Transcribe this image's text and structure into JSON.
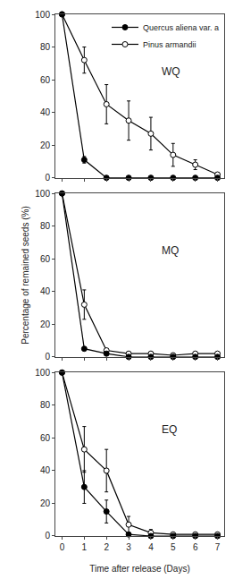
{
  "chart_data": [
    {
      "type": "line",
      "title": "WQ",
      "x": [
        0,
        1,
        2,
        3,
        4,
        5,
        6,
        7
      ],
      "series": [
        {
          "name": "Pinus armandii",
          "color": "black",
          "marker": "open",
          "values": [
            100,
            72,
            45,
            35,
            27,
            14,
            8,
            2
          ],
          "errors": [
            0,
            8,
            12,
            12,
            10,
            7,
            3,
            1
          ]
        },
        {
          "name": "Quercus aliena var. a",
          "color": "black",
          "marker": "filled",
          "values": [
            100,
            11,
            0,
            0,
            0,
            0,
            0,
            0
          ],
          "errors": [
            0,
            2,
            0,
            0,
            0,
            0,
            0,
            0
          ]
        }
      ],
      "xlim": [
        -0.3,
        7.3
      ],
      "xticks": [
        0,
        1,
        2,
        3,
        4,
        5,
        6,
        7
      ],
      "ylim": [
        0,
        100
      ],
      "yticks": [
        0,
        20,
        40,
        60,
        80,
        100
      ],
      "grid": false,
      "legend": "upper right",
      "tick_labels": "y"
    },
    {
      "type": "line",
      "title": "MQ",
      "ylabel": "Percentage of remained seeds (%)",
      "x": [
        0,
        1,
        2,
        3,
        4,
        5,
        6,
        7
      ],
      "series": [
        {
          "color": "black",
          "marker": "open",
          "values": [
            100,
            32,
            4,
            2,
            2,
            1,
            2,
            2
          ],
          "errors": [
            0,
            9,
            1,
            0,
            0,
            0,
            0,
            0
          ]
        },
        {
          "color": "black",
          "marker": "filled",
          "values": [
            100,
            5,
            2,
            0,
            0,
            0,
            0,
            0
          ],
          "errors": [
            0,
            1,
            0,
            0,
            0,
            0,
            0,
            0
          ]
        }
      ],
      "xlim": [
        -0.3,
        7.3
      ],
      "xticks": [
        0,
        1,
        2,
        3,
        4,
        5,
        6,
        7
      ],
      "ylim": [
        0,
        100
      ],
      "yticks": [
        0,
        20,
        40,
        60,
        80,
        100
      ],
      "grid": false,
      "tick_labels": "y"
    },
    {
      "type": "line",
      "title": "EQ",
      "xlabel": "Time after release (Days)",
      "x": [
        0,
        1,
        2,
        3,
        4,
        5,
        6,
        7
      ],
      "series": [
        {
          "color": "black",
          "marker": "open",
          "values": [
            100,
            53,
            40,
            7,
            2,
            1,
            1,
            1
          ],
          "errors": [
            0,
            14,
            13,
            5,
            2,
            0,
            0,
            0
          ]
        },
        {
          "color": "black",
          "marker": "filled",
          "values": [
            100,
            30,
            15,
            1,
            0,
            0,
            0,
            0
          ],
          "errors": [
            0,
            10,
            7,
            0,
            0,
            0,
            0,
            0
          ]
        }
      ],
      "xlim": [
        -0.3,
        7.3
      ],
      "xticks": [
        0,
        1,
        2,
        3,
        4,
        5,
        6,
        7
      ],
      "ylim": [
        0,
        100
      ],
      "yticks": [
        0,
        20,
        40,
        60,
        80,
        100
      ],
      "grid": false
    }
  ]
}
